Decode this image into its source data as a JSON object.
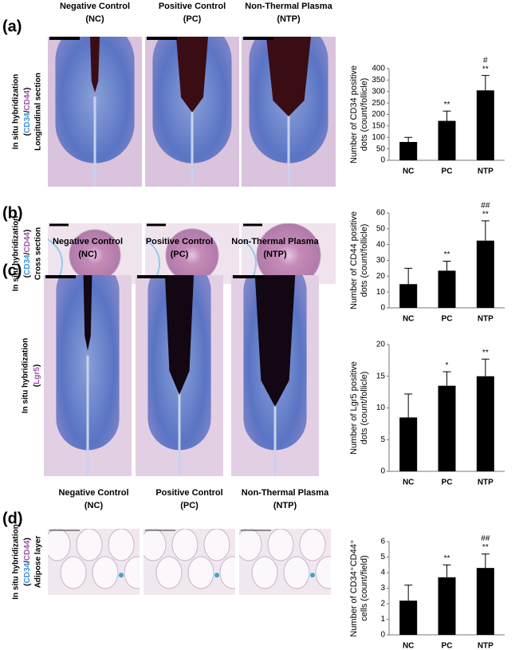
{
  "figure": {
    "panels": [
      {
        "label": "(a)",
        "columns": [
          [
            "Negative Control",
            "(NC)"
          ],
          [
            "Positive Control",
            "(PC)"
          ],
          [
            "Non-Thermal Plasma",
            "(NTP)"
          ]
        ],
        "row_label": [
          "In situ hybridization",
          [
            "(",
            "CD34",
            "/",
            "CD44",
            ")"
          ],
          "Longitudinal section"
        ]
      },
      {
        "label": "(b)",
        "row_label": [
          "In situ hybridization",
          [
            "(",
            "CD34",
            "/",
            "CD44",
            ")"
          ],
          "Cross section"
        ]
      },
      {
        "label": "(c)",
        "columns": [
          [
            "Negative Control",
            "(NC)"
          ],
          [
            "Positive Control",
            "(PC)"
          ],
          [
            "Non-Thermal Plasma",
            "(NTP)"
          ]
        ],
        "row_label": [
          "In situ hybridization",
          [
            "(",
            "Lgr5",
            ")"
          ]
        ]
      },
      {
        "label": "(d)",
        "columns": [
          [
            "Negative Control",
            "(NC)"
          ],
          [
            "Positive Control",
            "(PC)"
          ],
          [
            "Non-Thermal Plasma",
            "(NTP)"
          ]
        ],
        "row_label": [
          "In situ hybridization",
          [
            "(",
            "CD34",
            "/",
            "CD44",
            ")"
          ],
          "Adipose layer"
        ]
      }
    ]
  },
  "chart_data": [
    {
      "type": "bar",
      "ylabel": [
        "Number of CD34 positive",
        "dots (count/follicle)"
      ],
      "categories": [
        "NC",
        "PC",
        "NTP"
      ],
      "values": [
        80,
        172,
        305
      ],
      "errors": [
        20,
        43,
        65
      ],
      "significance": [
        null,
        "**",
        "**"
      ],
      "significance_vs_pc": [
        null,
        null,
        "#"
      ],
      "color": "#000000",
      "ylim": [
        0,
        400
      ],
      "yticks": [
        0,
        50,
        100,
        150,
        200,
        250,
        300,
        350,
        400
      ]
    },
    {
      "type": "bar",
      "ylabel": [
        "Number of CD44 positive",
        "dots (count/follicle)"
      ],
      "categories": [
        "NC",
        "PC",
        "NTP"
      ],
      "values": [
        15,
        23.5,
        42.5
      ],
      "errors": [
        10,
        6,
        12.5
      ],
      "significance": [
        null,
        "**",
        "**"
      ],
      "significance_vs_pc": [
        null,
        null,
        "##"
      ],
      "color": "#000000",
      "ylim": [
        0,
        60
      ],
      "yticks": [
        0,
        10,
        20,
        30,
        40,
        50,
        60
      ]
    },
    {
      "type": "bar",
      "ylabel": [
        "Number of Lgr5 positive",
        "dots (count/follicle)"
      ],
      "categories": [
        "NC",
        "PC",
        "NTP"
      ],
      "values": [
        8.5,
        13.5,
        15
      ],
      "errors": [
        3.7,
        2.2,
        2.7
      ],
      "significance": [
        null,
        "*",
        "**"
      ],
      "color": "#000000",
      "ylim": [
        0,
        20
      ],
      "yticks": [
        0,
        5,
        10,
        15,
        20
      ]
    },
    {
      "type": "bar",
      "ylabel": [
        "Number of CD34⁺CD44⁺",
        "cells (count/field)"
      ],
      "categories": [
        "NC",
        "PC",
        "NTP"
      ],
      "values": [
        2.2,
        3.7,
        4.3
      ],
      "errors": [
        1,
        0.8,
        0.9
      ],
      "significance": [
        null,
        "**",
        "**"
      ],
      "significance_vs_pc": [
        null,
        null,
        "##"
      ],
      "color": "#000000",
      "ylim": [
        0,
        6
      ],
      "yticks": [
        0,
        1,
        2,
        3,
        4,
        5,
        6
      ]
    }
  ]
}
